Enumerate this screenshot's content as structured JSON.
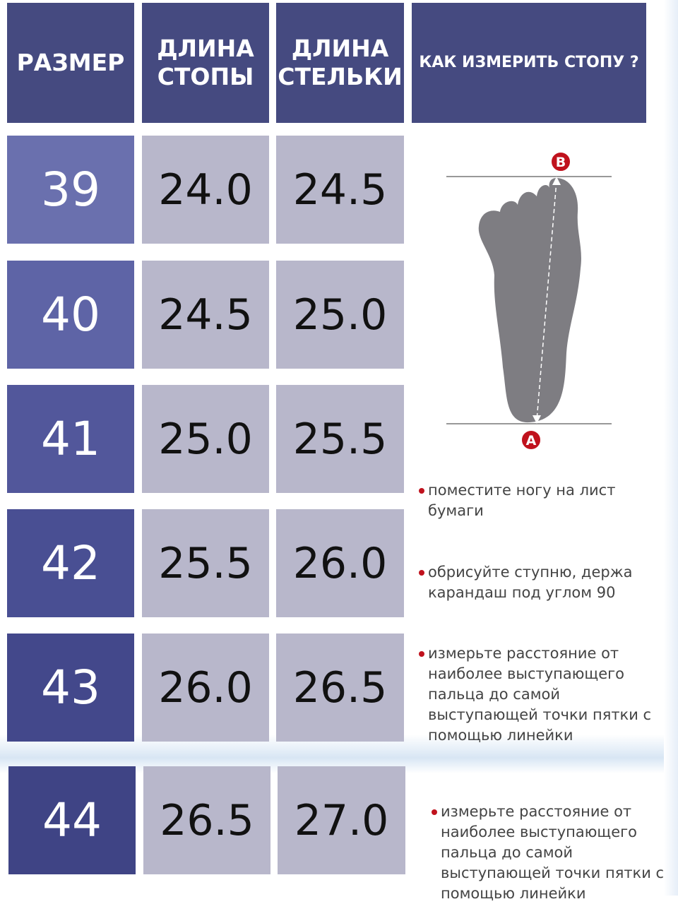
{
  "header": {
    "size": "РАЗМЕР",
    "foot_length": [
      "ДЛИНА",
      "СТОПЫ"
    ],
    "insole_length": [
      "ДЛИНА",
      "СТЕЛЬКИ"
    ],
    "how_to": "КАК ИЗМЕРИТЬ СТОПУ ?"
  },
  "rows": [
    {
      "size": "39",
      "foot": "24.0",
      "insole": "24.5"
    },
    {
      "size": "40",
      "foot": "24.5",
      "insole": "25.0"
    },
    {
      "size": "41",
      "foot": "25.0",
      "insole": "25.5"
    },
    {
      "size": "42",
      "foot": "25.5",
      "insole": "26.0"
    },
    {
      "size": "43",
      "foot": "26.0",
      "insole": "26.5"
    },
    {
      "size": "44",
      "foot": "26.5",
      "insole": "27.0"
    }
  ],
  "diagram": {
    "top_marker": "B",
    "bottom_marker": "A"
  },
  "tips": [
    "поместите ногу на лист бумаги",
    "обрисуйте ступню, держа карандаш под углом 90",
    "измерьте расстояние от наиболее выступающего пальца до самой выступающей точки пятки с помощью линейки",
    "измерьте расстояние от наиболее выступающего пальца до самой выступающей точки пятки с помощью линейки"
  ],
  "colors": {
    "header": "#454a80",
    "value_cell": "#b8b7cb",
    "marker": "#c0121d"
  }
}
